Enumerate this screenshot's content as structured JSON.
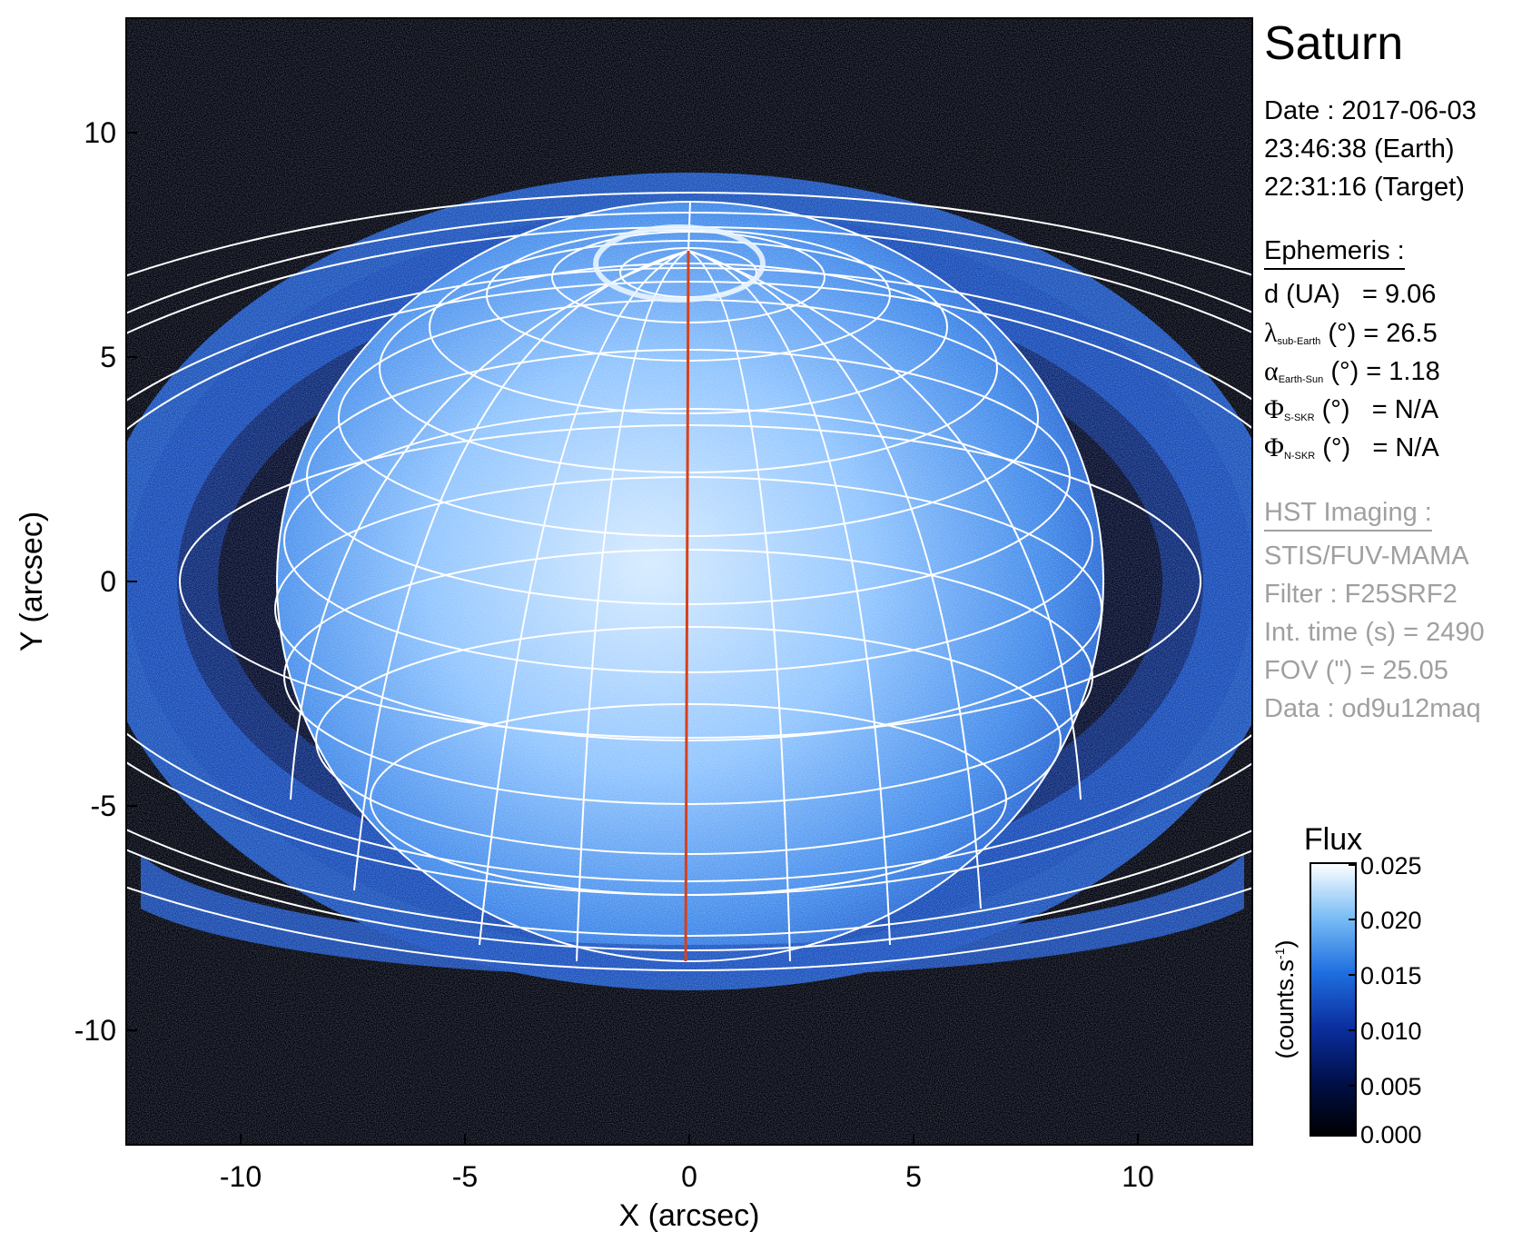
{
  "title": "Saturn",
  "date": {
    "line1": "Date : 2017-06-03",
    "line2": "23:46:38 (Earth)",
    "line3": "22:31:16 (Target)"
  },
  "ephemeris": {
    "header": "Ephemeris :",
    "distance": {
      "label": "d (UA)",
      "value": "= 9.06"
    },
    "lambda": {
      "symbol": "λ",
      "sub": "sub-Earth",
      "unit": "(°)",
      "value": "= 26.5"
    },
    "alpha": {
      "symbol": "α",
      "sub": "Earth-Sun",
      "unit": "(°)",
      "value": "= 1.18"
    },
    "phi_s": {
      "symbol": "Φ",
      "sub": "S-SKR",
      "unit": "(°)",
      "value": "= N/A"
    },
    "phi_n": {
      "symbol": "Φ",
      "sub": "N-SKR",
      "unit": "(°)",
      "value": "= N/A"
    }
  },
  "hst": {
    "header": "HST Imaging :",
    "instrument": "STIS/FUV-MAMA",
    "filter": "Filter : F25SRF2",
    "int_time": "Int. time (s) = 2490",
    "fov": "FOV (\") = 25.05",
    "data": "Data : od9u12maq"
  },
  "axes": {
    "xlabel": "X (arcsec)",
    "ylabel": "Y (arcsec)",
    "xticks": [
      "-10",
      "-5",
      "0",
      "5",
      "10"
    ],
    "yticks": [
      "10",
      "5",
      "0",
      "-5",
      "-10"
    ]
  },
  "colorbar": {
    "title": "Flux",
    "label_main": "(counts.s",
    "label_sup": "-1",
    "label_end": ")",
    "ticks": [
      "0.025",
      "0.020",
      "0.015",
      "0.010",
      "0.005",
      "0.000"
    ]
  },
  "colors": {
    "background": "#020510",
    "planet_center": "#cfe6ff",
    "planet_edge": "#1d5fd6",
    "ring": "#1f5dcf",
    "grid": "#ffffff",
    "meridian": "#d8401a"
  }
}
